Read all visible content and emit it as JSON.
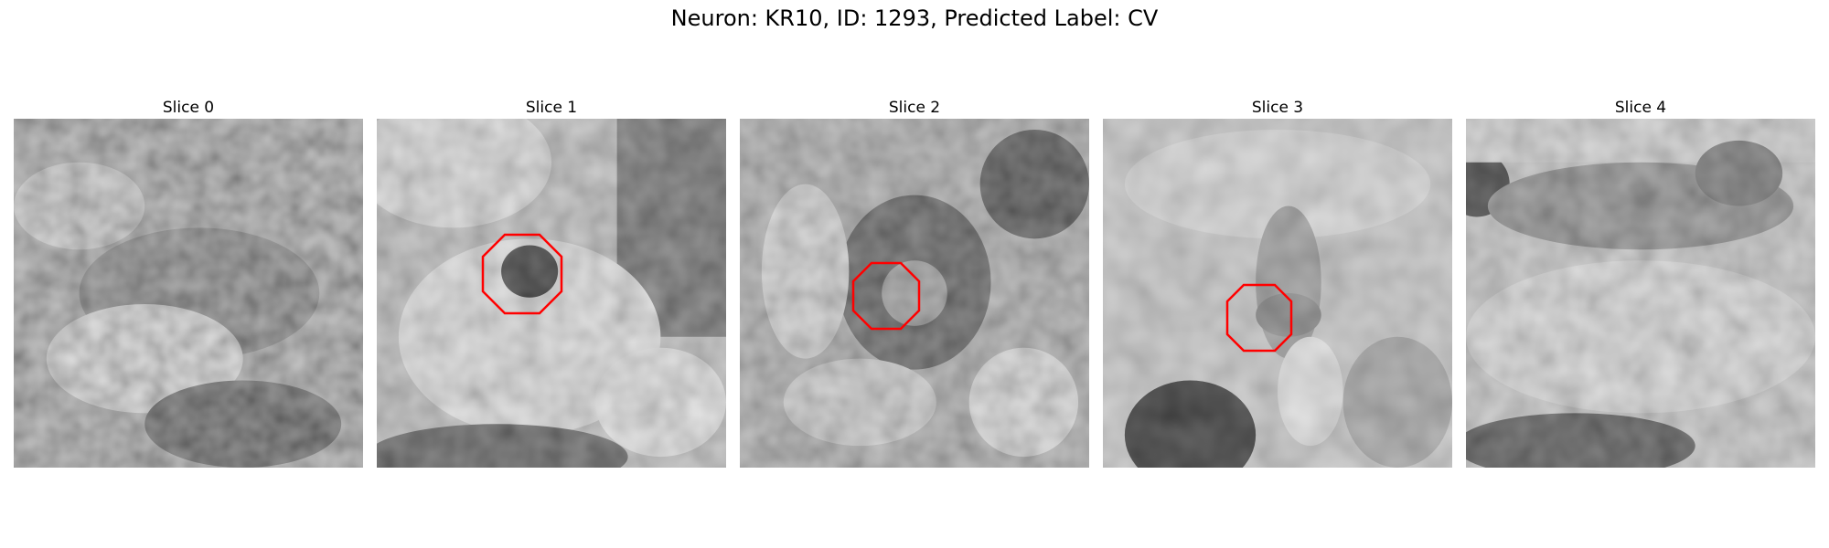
{
  "figure": {
    "title": "Neuron: KR10, ID: 1293, Predicted Label: CV"
  },
  "panels": [
    {
      "title": "Slice 0",
      "has_roi": false
    },
    {
      "title": "Slice 1",
      "has_roi": true
    },
    {
      "title": "Slice 2",
      "has_roi": true
    },
    {
      "title": "Slice 3",
      "has_roi": true
    },
    {
      "title": "Slice 4",
      "has_roi": false
    }
  ],
  "colors": {
    "roi_outline": "#ff0000",
    "background": "#ffffff"
  }
}
